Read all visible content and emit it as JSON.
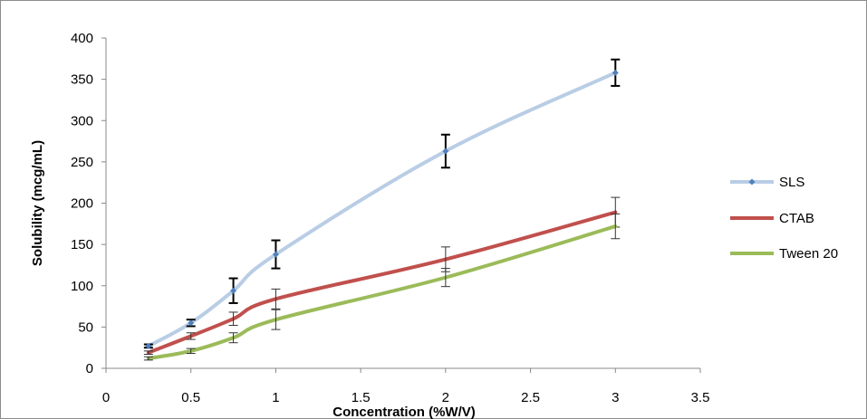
{
  "chart_data": {
    "type": "line",
    "xlabel": "Concentration (%W/V)",
    "ylabel": "Solubility (mcg/mL)",
    "xlim": [
      0,
      3.5
    ],
    "ylim": [
      0,
      400
    ],
    "x_ticks": [
      "0",
      "0.5",
      "1",
      "1.5",
      "2",
      "2.5",
      "3",
      "3.5"
    ],
    "y_ticks": [
      "0",
      "50",
      "100",
      "150",
      "200",
      "250",
      "300",
      "350",
      "400"
    ],
    "grid": false,
    "legend_position": "right",
    "series": [
      {
        "name": "SLS",
        "color": "#b9cde5",
        "marker": "diamond",
        "x": [
          0.25,
          0.5,
          0.75,
          1,
          2,
          3
        ],
        "y": [
          27,
          55,
          94,
          138,
          263,
          358
        ],
        "error": [
          2,
          4,
          15,
          17,
          20,
          16
        ]
      },
      {
        "name": "CTAB",
        "color": "#c0504d",
        "marker": "none",
        "x": [
          0.25,
          0.5,
          0.75,
          1,
          2,
          3
        ],
        "y": [
          19,
          39,
          60,
          84,
          132,
          189
        ],
        "error": [
          2,
          4,
          8,
          12,
          15,
          18
        ]
      },
      {
        "name": "Tween 20",
        "color": "#9bbb59",
        "marker": "none",
        "x": [
          0.25,
          0.5,
          0.75,
          1,
          2,
          3
        ],
        "y": [
          12,
          21,
          37,
          59,
          110,
          172
        ],
        "error": [
          2,
          3,
          6,
          12,
          11,
          15
        ]
      }
    ]
  }
}
